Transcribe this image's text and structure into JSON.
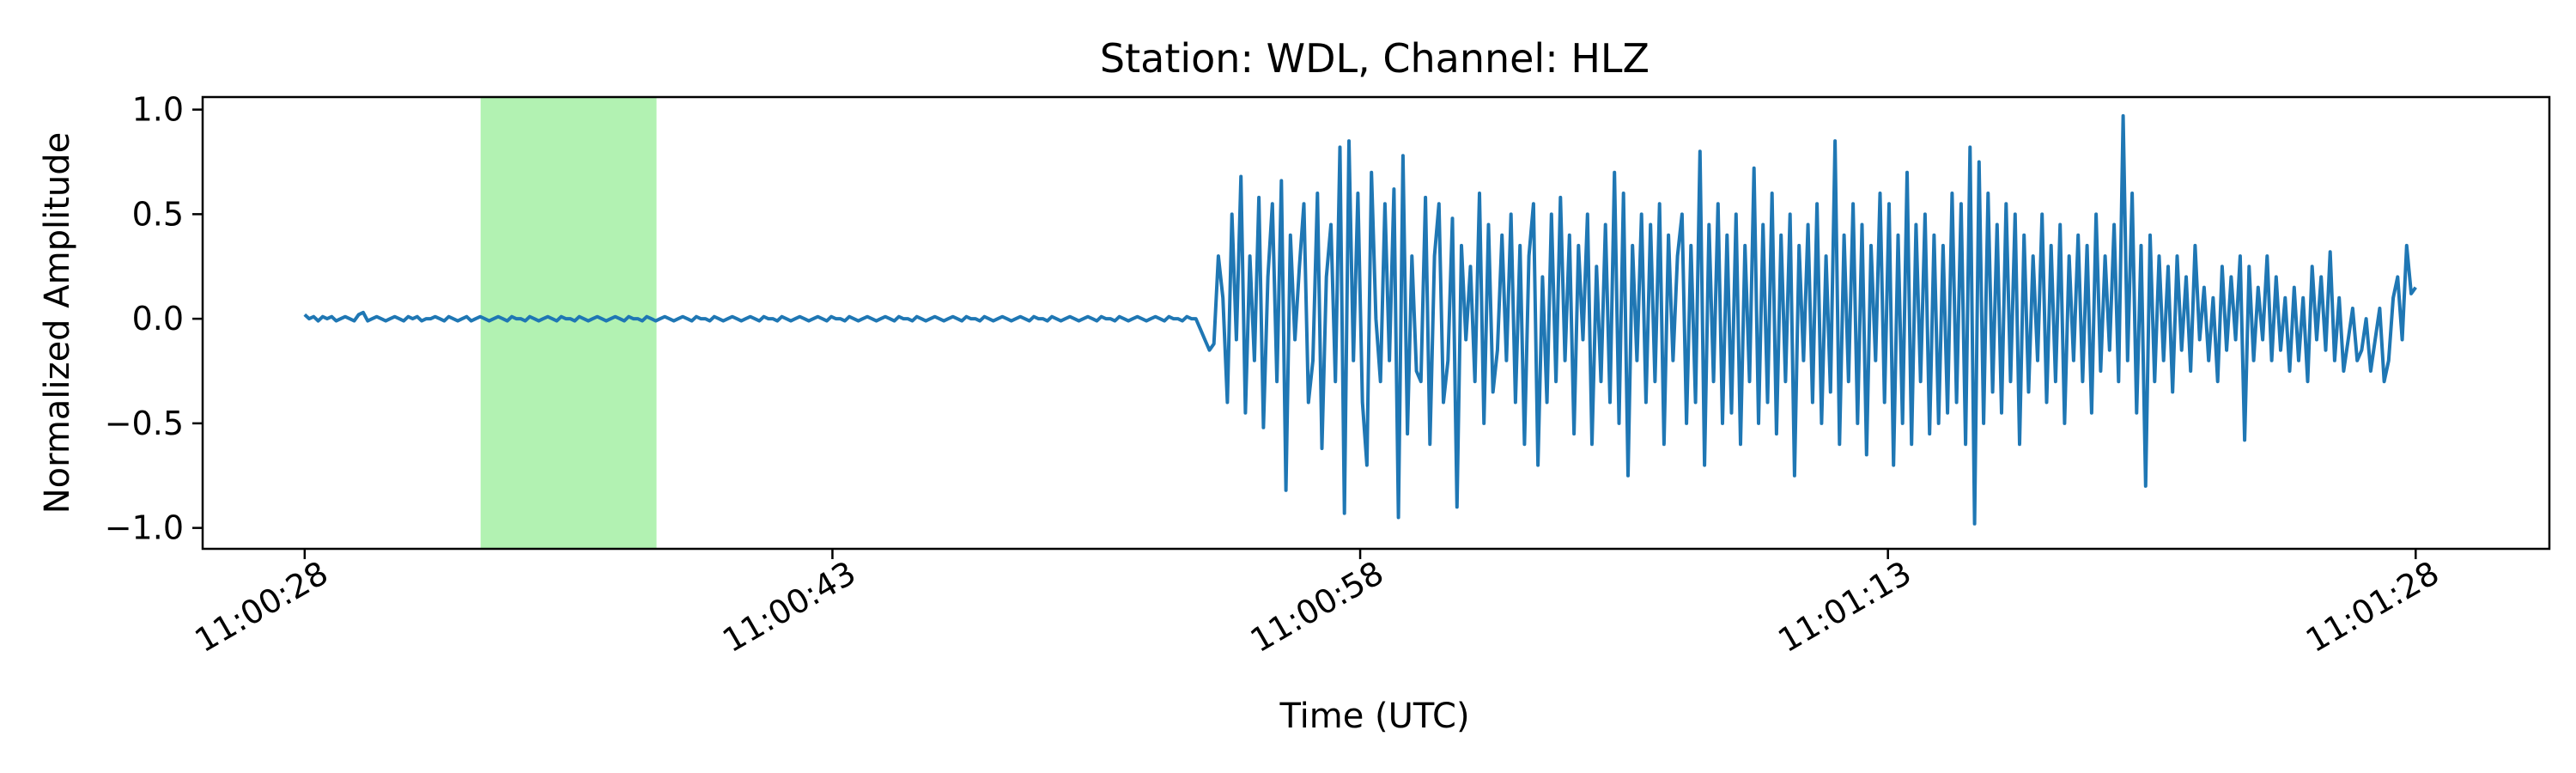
{
  "chart_data": {
    "type": "line",
    "title": "Station: WDL, Channel: HLZ",
    "xlabel": "Time (UTC)",
    "ylabel": "Normalized Amplitude",
    "x_ticks": [
      "11:00:28",
      "11:00:43",
      "11:00:58",
      "11:01:13",
      "11:01:28"
    ],
    "x_tick_seconds": [
      0,
      15,
      30,
      45,
      60
    ],
    "xlim_seconds": [
      -2.9,
      63.8
    ],
    "y_ticks": [
      "1.0",
      "0.5",
      "0.0",
      "−0.5",
      "−1.0"
    ],
    "y_tick_values": [
      1.0,
      0.5,
      0.0,
      -0.5,
      -1.0
    ],
    "ylim": [
      -1.1,
      1.06
    ],
    "highlight_span_seconds": [
      5.0,
      10.0
    ],
    "highlight_color": "#b2f2b2",
    "line_color": "#1f77b4",
    "series": [
      {
        "x_seconds_start": 0,
        "x_seconds_step": 0.2,
        "values": [
          0.02,
          0.0,
          0.01,
          -0.01,
          0.01,
          0.0,
          0.01,
          -0.01,
          0.0,
          0.01,
          0.0,
          -0.01,
          0.02,
          0.03,
          -0.01,
          0.0,
          0.01,
          0.0,
          -0.01,
          0.0,
          0.01,
          0.0,
          -0.01,
          0.01,
          0.0,
          0.01,
          -0.01,
          0.0,
          0.0,
          0.01,
          0.0,
          -0.01,
          0.01,
          0.0,
          -0.01,
          0.0,
          0.01,
          -0.01,
          0.0,
          0.01,
          0.0,
          -0.01,
          0.0,
          0.01,
          0.0,
          -0.01,
          0.01,
          0.0,
          0.0,
          -0.01,
          0.01,
          0.0,
          -0.01,
          0.0,
          0.01,
          0.0,
          -0.01,
          0.01,
          0.0,
          0.0,
          -0.01,
          0.01,
          0.0,
          -0.01,
          0.0,
          0.01,
          0.0,
          -0.01,
          0.0,
          0.01,
          0.0,
          -0.01,
          0.01,
          0.0,
          0.0,
          -0.01,
          0.01,
          0.0,
          -0.01,
          0.0,
          0.01,
          0.0,
          -0.01,
          0.0,
          0.01,
          0.0,
          -0.01,
          0.01,
          0.0,
          0.0,
          -0.01,
          0.01,
          0.0,
          -0.01,
          0.0,
          0.01,
          0.0,
          -0.01,
          0.0,
          0.01,
          0.0,
          -0.01,
          0.01,
          0.0,
          0.0,
          -0.01,
          0.01,
          0.0,
          -0.01,
          0.0,
          0.01,
          0.0,
          -0.01,
          0.0,
          0.01,
          0.0,
          -0.01,
          0.01,
          0.0,
          0.0,
          -0.01,
          0.01,
          0.0,
          -0.01,
          0.0,
          0.01,
          0.0,
          -0.01,
          0.0,
          0.01,
          0.0,
          -0.01,
          0.01,
          0.0,
          0.0,
          -0.01,
          0.01,
          0.0,
          -0.01,
          0.0,
          0.01,
          0.0,
          -0.01,
          0.0,
          0.01,
          0.0,
          -0.01,
          0.01,
          0.0,
          0.0,
          -0.01,
          0.01,
          0.0,
          -0.01,
          0.0,
          0.01,
          0.0,
          -0.01,
          0.0,
          0.01,
          0.0,
          -0.01,
          0.01,
          0.0,
          0.0,
          -0.01,
          0.01,
          0.0,
          -0.01,
          0.0,
          0.01,
          0.0,
          -0.01,
          0.0,
          0.01,
          0.0,
          -0.01,
          0.01,
          0.0,
          0.0,
          -0.01,
          0.01,
          0.0,
          -0.01,
          0.0,
          0.01,
          0.0,
          -0.01,
          0.0,
          0.01,
          0.0,
          -0.01,
          0.01,
          0.0,
          0.0,
          -0.01,
          0.01,
          0.0,
          0.0,
          -0.05,
          -0.1,
          -0.15,
          -0.12,
          0.3,
          0.1,
          -0.4,
          0.5,
          -0.1,
          0.68,
          -0.45,
          0.3,
          -0.2,
          0.58,
          -0.52,
          0.2,
          0.55,
          -0.3,
          0.66,
          -0.82,
          0.4,
          -0.1,
          0.25,
          0.55,
          -0.4,
          -0.2,
          0.6,
          -0.62,
          0.2,
          0.45,
          -0.3,
          0.82,
          -0.93,
          0.85,
          -0.2,
          0.6,
          -0.4,
          -0.7,
          0.7,
          0.0,
          -0.3,
          0.55,
          -0.2,
          0.62,
          -0.95,
          0.78,
          -0.55,
          0.3,
          -0.25,
          -0.3,
          0.58,
          -0.6,
          0.3,
          0.55,
          -0.4,
          -0.2,
          0.48,
          -0.9,
          0.35,
          -0.1,
          0.25,
          -0.3,
          0.6,
          -0.5,
          0.45,
          -0.35,
          -0.15,
          0.4,
          -0.2,
          0.5,
          -0.4,
          0.35,
          -0.6,
          0.3,
          0.55,
          -0.7,
          0.2,
          -0.4,
          0.5,
          -0.3,
          0.58,
          -0.2,
          0.4,
          -0.55,
          0.35,
          -0.1,
          0.5,
          -0.6,
          0.25,
          -0.3,
          0.45,
          -0.4,
          0.7,
          -0.5,
          0.6,
          -0.75,
          0.35,
          -0.2,
          0.5,
          -0.4,
          0.45,
          -0.3,
          0.55,
          -0.6,
          0.4,
          -0.2,
          0.3,
          0.5,
          -0.5,
          0.35,
          -0.4,
          0.8,
          -0.7,
          0.45,
          -0.3,
          0.55,
          -0.5,
          0.4,
          -0.45,
          0.5,
          -0.6,
          0.35,
          -0.3,
          0.72,
          -0.5,
          0.45,
          -0.4,
          0.6,
          -0.55,
          0.4,
          -0.3,
          0.5,
          -0.75,
          0.35,
          -0.2,
          0.45,
          -0.4,
          0.55,
          -0.5,
          0.3,
          -0.35,
          0.85,
          -0.6,
          0.4,
          -0.3,
          0.55,
          -0.5,
          0.45,
          -0.65,
          0.35,
          -0.2,
          0.6,
          -0.4,
          0.55,
          -0.7,
          0.4,
          -0.5,
          0.7,
          -0.6,
          0.45,
          -0.3,
          0.5,
          -0.55,
          0.4,
          -0.5,
          0.35,
          -0.45,
          0.6,
          -0.4,
          0.55,
          -0.6,
          0.82,
          -0.98,
          0.75,
          -0.5,
          0.6,
          -0.35,
          0.45,
          -0.45,
          0.55,
          -0.3,
          0.5,
          -0.6,
          0.4,
          -0.35,
          0.3,
          -0.2,
          0.5,
          -0.4,
          0.35,
          -0.3,
          0.45,
          -0.5,
          0.3,
          -0.2,
          0.4,
          -0.3,
          0.35,
          -0.45,
          0.5,
          -0.25,
          0.3,
          -0.15,
          0.45,
          -0.3,
          0.97,
          -0.2,
          0.6,
          -0.45,
          0.35,
          -0.8,
          0.4,
          -0.3,
          0.3,
          -0.2,
          0.25,
          -0.35,
          0.3,
          -0.15,
          0.2,
          -0.25,
          0.35,
          -0.1,
          0.15,
          -0.2,
          0.1,
          -0.3,
          0.25,
          -0.15,
          0.2,
          -0.1,
          0.3,
          -0.58,
          0.25,
          -0.2,
          0.15,
          -0.1,
          0.3,
          -0.2,
          0.2,
          -0.15,
          0.1,
          -0.25,
          0.15,
          -0.2,
          0.1,
          -0.3,
          0.25,
          -0.1,
          0.2,
          -0.15,
          0.32,
          -0.2,
          0.1,
          -0.25,
          -0.1,
          0.05,
          -0.2,
          -0.15,
          0.0,
          -0.25,
          -0.1,
          0.05,
          -0.3,
          -0.2,
          0.1,
          0.2,
          -0.1,
          0.35,
          0.12,
          0.15
        ]
      }
    ]
  }
}
